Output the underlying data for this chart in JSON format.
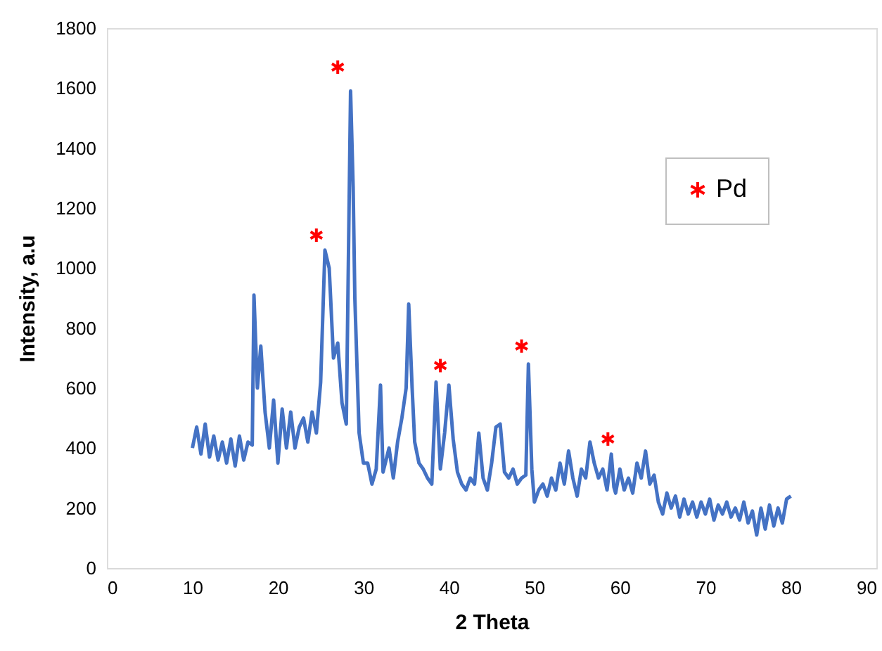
{
  "chart_data": {
    "type": "line",
    "xlabel": "2 Theta",
    "ylabel": "Intensity, a.u",
    "xlim": [
      0,
      90
    ],
    "xticks": [
      0,
      10,
      20,
      30,
      40,
      50,
      60,
      70,
      80,
      90
    ],
    "ylim": [
      0,
      1800
    ],
    "yticks": [
      0,
      200,
      400,
      600,
      800,
      1000,
      1200,
      1400,
      1600,
      1800
    ],
    "grid": false,
    "legend": "top right",
    "series": [
      {
        "color": "#4472c4",
        "marker": "none",
        "line_style": "solid",
        "x": [
          10,
          10.5,
          11,
          11.5,
          12,
          12.5,
          13,
          13.5,
          14,
          14.5,
          15,
          15.5,
          16,
          16.5,
          17,
          17.2,
          17.6,
          18,
          18.5,
          19,
          19.5,
          20,
          20.5,
          21,
          21.5,
          22,
          22.5,
          23,
          23.5,
          24,
          24.5,
          25,
          25.5,
          26,
          26.5,
          27,
          27.5,
          28,
          28.5,
          28.8,
          29,
          29.5,
          30,
          30.5,
          31,
          31.5,
          32,
          32.3,
          33,
          33.5,
          34,
          34.5,
          35,
          35.3,
          35.7,
          36,
          36.5,
          37,
          37.5,
          38,
          38.5,
          39,
          39.5,
          40,
          40.5,
          41,
          41.5,
          42,
          42.5,
          43,
          43.5,
          44,
          44.5,
          45,
          45.5,
          46,
          46.5,
          47,
          47.5,
          48,
          48.5,
          49,
          49.3,
          49.7,
          50,
          50.5,
          51,
          51.5,
          52,
          52.5,
          53,
          53.5,
          54,
          54.5,
          55,
          55.5,
          56,
          56.5,
          57,
          57.5,
          58,
          58.5,
          59,
          59.3,
          59.5,
          60,
          60.5,
          61,
          61.5,
          62,
          62.5,
          63,
          63.5,
          64,
          64.5,
          65,
          65.5,
          66,
          66.5,
          67,
          67.5,
          68,
          68.5,
          69,
          69.5,
          70,
          70.5,
          71,
          71.5,
          72,
          72.5,
          73,
          73.5,
          74,
          74.5,
          75,
          75.5,
          76,
          76.5,
          77,
          77.5,
          78,
          78.5,
          79,
          79.5,
          80
        ],
        "values": [
          400,
          470,
          380,
          480,
          370,
          440,
          360,
          420,
          350,
          430,
          340,
          440,
          360,
          420,
          410,
          910,
          600,
          740,
          520,
          400,
          560,
          350,
          530,
          400,
          520,
          400,
          470,
          500,
          420,
          520,
          450,
          620,
          1060,
          1000,
          700,
          750,
          550,
          480,
          1590,
          1270,
          900,
          450,
          350,
          350,
          280,
          330,
          610,
          320,
          400,
          300,
          420,
          500,
          600,
          880,
          600,
          420,
          350,
          330,
          300,
          280,
          620,
          330,
          450,
          610,
          430,
          320,
          280,
          260,
          300,
          280,
          450,
          300,
          260,
          350,
          470,
          480,
          320,
          300,
          330,
          280,
          300,
          310,
          680,
          330,
          220,
          260,
          280,
          240,
          300,
          260,
          350,
          280,
          390,
          300,
          240,
          330,
          300,
          420,
          350,
          300,
          330,
          260,
          380,
          270,
          250,
          330,
          260,
          300,
          250,
          350,
          300,
          390,
          280,
          310,
          220,
          180,
          250,
          200,
          240,
          170,
          230,
          180,
          220,
          170,
          220,
          180,
          230,
          160,
          210,
          180,
          220,
          170,
          200,
          160,
          220,
          150,
          190,
          110,
          200,
          130,
          210,
          140,
          200,
          150,
          230,
          240
        ]
      },
      {
        "type": "scatter",
        "name": "Pd",
        "color": "#ff0000",
        "marker": "cross",
        "x": [
          24.5,
          27.0,
          39.0,
          48.5,
          58.6
        ],
        "values": [
          1110,
          1670,
          675,
          740,
          430
        ]
      }
    ]
  }
}
